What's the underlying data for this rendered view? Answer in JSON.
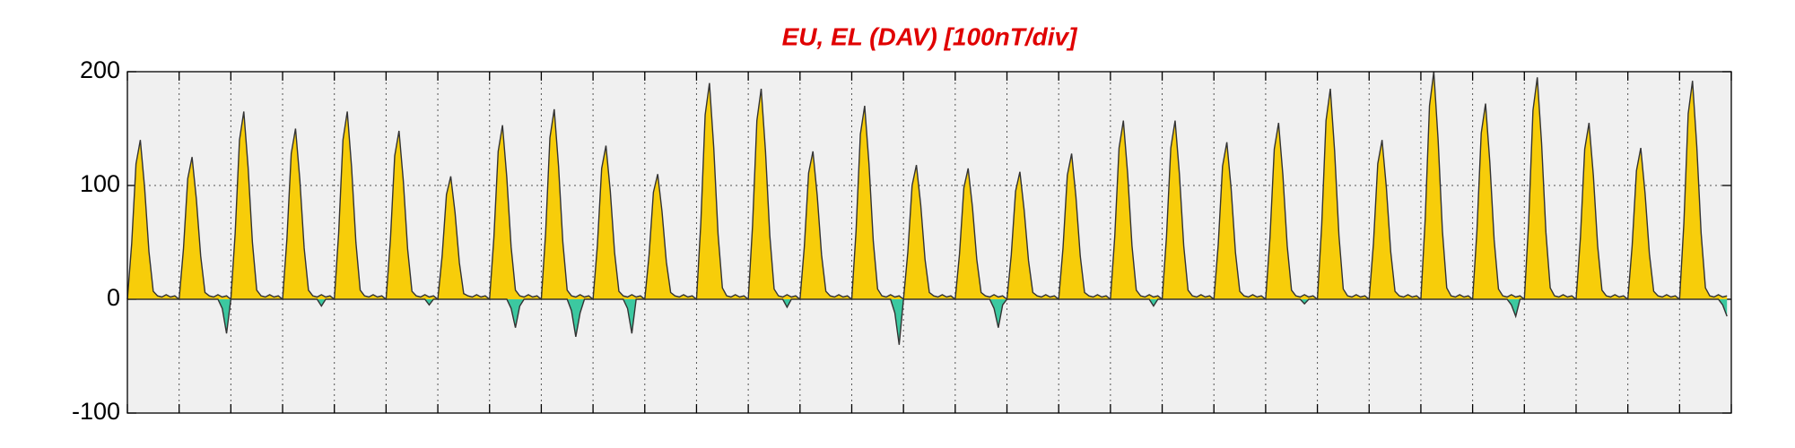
{
  "chart_data": {
    "type": "area",
    "title": "EU, EL (DAV)  [100nT/div]",
    "xlim": [
      0,
      744
    ],
    "xticks": [
      0,
      24,
      48,
      72,
      96,
      120,
      144,
      168,
      192,
      216,
      240,
      264,
      288,
      312,
      336,
      360,
      384,
      408,
      432,
      456,
      480,
      504,
      528,
      552,
      576,
      600,
      624,
      648,
      672,
      696,
      720,
      744
    ],
    "ylim": [
      -100,
      200
    ],
    "yticks": [
      -100,
      0,
      100,
      200
    ],
    "grid": true,
    "x": [
      0,
      2,
      4,
      6,
      8,
      10,
      12,
      14,
      16,
      18,
      20,
      22,
      24,
      26,
      28,
      30,
      32,
      34,
      36,
      38,
      40,
      42,
      44,
      46,
      48,
      50,
      52,
      54,
      56,
      58,
      60,
      62,
      64,
      66,
      68,
      70,
      72,
      74,
      76,
      78,
      80,
      82,
      84,
      86,
      88,
      90,
      92,
      94,
      96,
      98,
      100,
      102,
      104,
      106,
      108,
      110,
      112,
      114,
      116,
      118,
      120,
      122,
      124,
      126,
      128,
      130,
      132,
      134,
      136,
      138,
      140,
      142,
      144,
      146,
      148,
      150,
      152,
      154,
      156,
      158,
      160,
      162,
      164,
      166,
      168,
      170,
      172,
      174,
      176,
      178,
      180,
      182,
      184,
      186,
      188,
      190,
      192,
      194,
      196,
      198,
      200,
      202,
      204,
      206,
      208,
      210,
      212,
      214,
      216,
      218,
      220,
      222,
      224,
      226,
      228,
      230,
      232,
      234,
      236,
      238,
      240,
      242,
      244,
      246,
      248,
      250,
      252,
      254,
      256,
      258,
      260,
      262,
      264,
      266,
      268,
      270,
      272,
      274,
      276,
      278,
      280,
      282,
      284,
      286,
      288,
      290,
      292,
      294,
      296,
      298,
      300,
      302,
      304,
      306,
      308,
      310,
      312,
      314,
      316,
      318,
      320,
      322,
      324,
      326,
      328,
      330,
      332,
      334,
      336,
      338,
      340,
      342,
      344,
      346,
      348,
      350,
      352,
      354,
      356,
      358,
      360,
      362,
      364,
      366,
      368,
      370,
      372,
      374,
      376,
      378,
      380,
      382,
      384,
      386,
      388,
      390,
      392,
      394,
      396,
      398,
      400,
      402,
      404,
      406,
      408,
      410,
      412,
      414,
      416,
      418,
      420,
      422,
      424,
      426,
      428,
      430,
      432,
      434,
      436,
      438,
      440,
      442,
      444,
      446,
      448,
      450,
      452,
      454,
      456,
      458,
      460,
      462,
      464,
      466,
      468,
      470,
      472,
      474,
      476,
      478,
      480,
      482,
      484,
      486,
      488,
      490,
      492,
      494,
      496,
      498,
      500,
      502,
      504,
      506,
      508,
      510,
      512,
      514,
      516,
      518,
      520,
      522,
      524,
      526,
      528,
      530,
      532,
      534,
      536,
      538,
      540,
      542,
      544,
      546,
      548,
      550,
      552,
      554,
      556,
      558,
      560,
      562,
      564,
      566,
      568,
      570,
      572,
      574,
      576,
      578,
      580,
      582,
      584,
      586,
      588,
      590,
      592,
      594,
      596,
      598,
      600,
      602,
      604,
      606,
      608,
      610,
      612,
      614,
      616,
      618,
      620,
      622,
      624,
      626,
      628,
      630,
      632,
      634,
      636,
      638,
      640,
      642,
      644,
      646,
      648,
      650,
      652,
      654,
      656,
      658,
      660,
      662,
      664,
      666,
      668,
      670,
      672,
      674,
      676,
      678,
      680,
      682,
      684,
      686,
      688,
      690,
      692,
      694,
      696,
      698,
      700,
      702,
      704,
      706,
      708,
      710,
      712,
      714,
      716,
      718,
      720,
      722,
      724,
      726,
      728,
      730,
      732,
      734,
      736,
      738,
      740,
      742
    ],
    "series": [
      {
        "color": "#f7cd0a",
        "values": [
          0,
          49,
          119,
          140,
          98,
          42,
          7,
          3,
          2,
          4,
          2,
          3,
          0,
          44,
          106,
          125,
          88,
          38,
          6,
          3,
          2,
          4,
          2,
          3,
          0,
          58,
          140,
          165,
          116,
          50,
          8,
          3,
          2,
          4,
          2,
          3,
          0,
          53,
          128,
          150,
          105,
          45,
          8,
          3,
          2,
          4,
          2,
          3,
          0,
          58,
          140,
          165,
          116,
          50,
          8,
          3,
          2,
          4,
          2,
          3,
          0,
          52,
          126,
          148,
          104,
          44,
          7,
          3,
          2,
          4,
          2,
          3,
          0,
          38,
          92,
          108,
          76,
          32,
          5,
          3,
          2,
          4,
          2,
          3,
          0,
          54,
          130,
          153,
          107,
          46,
          8,
          3,
          2,
          4,
          2,
          3,
          0,
          58,
          142,
          167,
          117,
          50,
          8,
          3,
          2,
          4,
          2,
          3,
          0,
          47,
          115,
          135,
          95,
          41,
          7,
          3,
          2,
          4,
          2,
          3,
          0,
          39,
          94,
          110,
          77,
          33,
          6,
          3,
          2,
          4,
          2,
          3,
          0,
          67,
          162,
          190,
          133,
          57,
          10,
          3,
          2,
          4,
          2,
          3,
          0,
          65,
          157,
          185,
          130,
          56,
          9,
          3,
          2,
          4,
          2,
          3,
          0,
          46,
          111,
          130,
          91,
          39,
          7,
          3,
          2,
          4,
          2,
          3,
          0,
          60,
          145,
          170,
          119,
          51,
          9,
          3,
          2,
          4,
          2,
          3,
          0,
          41,
          100,
          118,
          83,
          35,
          6,
          3,
          2,
          4,
          2,
          3,
          0,
          40,
          98,
          115,
          81,
          35,
          6,
          3,
          2,
          4,
          2,
          3,
          0,
          39,
          95,
          112,
          78,
          34,
          6,
          3,
          2,
          4,
          2,
          3,
          0,
          45,
          109,
          128,
          90,
          38,
          6,
          3,
          2,
          4,
          2,
          3,
          0,
          55,
          133,
          157,
          110,
          47,
          8,
          3,
          2,
          4,
          2,
          3,
          0,
          55,
          133,
          157,
          110,
          47,
          8,
          3,
          2,
          4,
          2,
          3,
          0,
          48,
          117,
          138,
          97,
          41,
          7,
          3,
          2,
          4,
          2,
          3,
          0,
          54,
          132,
          155,
          109,
          47,
          8,
          3,
          2,
          4,
          2,
          3,
          0,
          65,
          157,
          185,
          130,
          56,
          9,
          3,
          2,
          4,
          2,
          3,
          0,
          49,
          119,
          140,
          98,
          42,
          7,
          3,
          2,
          4,
          2,
          3,
          0,
          70,
          170,
          200,
          140,
          60,
          10,
          3,
          2,
          4,
          2,
          3,
          0,
          60,
          146,
          172,
          120,
          52,
          9,
          3,
          2,
          4,
          2,
          3,
          0,
          68,
          166,
          195,
          137,
          59,
          10,
          3,
          2,
          4,
          2,
          3,
          0,
          54,
          132,
          155,
          109,
          47,
          8,
          3,
          2,
          4,
          2,
          3,
          0,
          47,
          113,
          133,
          93,
          40,
          7,
          3,
          2,
          4,
          2,
          3,
          0,
          67,
          163,
          192,
          134,
          58,
          10,
          3,
          2,
          4,
          2,
          3
        ]
      },
      {
        "color": "#3cc8a0",
        "values": [
          0,
          0,
          0,
          0,
          0,
          0,
          0,
          0,
          0,
          0,
          0,
          0,
          0,
          0,
          0,
          0,
          0,
          0,
          0,
          0,
          0,
          0,
          -8,
          -30,
          0,
          0,
          0,
          0,
          0,
          0,
          0,
          0,
          0,
          0,
          0,
          0,
          0,
          0,
          0,
          0,
          0,
          0,
          0,
          0,
          0,
          -6,
          0,
          0,
          0,
          0,
          0,
          0,
          0,
          0,
          0,
          0,
          0,
          0,
          0,
          0,
          0,
          0,
          0,
          0,
          0,
          0,
          0,
          0,
          0,
          0,
          -5,
          0,
          0,
          0,
          0,
          0,
          0,
          0,
          0,
          0,
          0,
          0,
          0,
          0,
          0,
          0,
          0,
          0,
          0,
          -8,
          -25,
          -6,
          0,
          0,
          0,
          0,
          0,
          0,
          0,
          0,
          0,
          0,
          0,
          -10,
          -33,
          -12,
          0,
          0,
          0,
          0,
          0,
          0,
          0,
          0,
          0,
          0,
          -8,
          -30,
          0,
          0,
          0,
          0,
          0,
          0,
          0,
          0,
          0,
          0,
          0,
          0,
          0,
          0,
          0,
          0,
          0,
          0,
          0,
          0,
          0,
          0,
          0,
          0,
          0,
          0,
          0,
          0,
          0,
          0,
          0,
          0,
          0,
          0,
          0,
          -7,
          0,
          0,
          0,
          0,
          0,
          0,
          0,
          0,
          0,
          0,
          0,
          0,
          0,
          0,
          0,
          0,
          0,
          0,
          0,
          0,
          0,
          0,
          0,
          0,
          -12,
          -40,
          0,
          0,
          0,
          0,
          0,
          0,
          0,
          0,
          0,
          0,
          0,
          0,
          0,
          0,
          0,
          0,
          0,
          0,
          0,
          0,
          0,
          -8,
          -25,
          -5,
          0,
          0,
          0,
          0,
          0,
          0,
          0,
          0,
          0,
          0,
          0,
          0,
          0,
          0,
          0,
          0,
          0,
          0,
          0,
          0,
          0,
          0,
          0,
          0,
          0,
          0,
          0,
          0,
          0,
          0,
          0,
          0,
          0,
          0,
          -6,
          0,
          0,
          0,
          0,
          0,
          0,
          0,
          0,
          0,
          0,
          0,
          0,
          0,
          0,
          0,
          0,
          0,
          0,
          0,
          0,
          0,
          0,
          0,
          0,
          0,
          0,
          0,
          0,
          0,
          0,
          0,
          0,
          0,
          0,
          -4,
          0,
          0,
          0,
          0,
          0,
          0,
          0,
          0,
          0,
          0,
          0,
          0,
          0,
          0,
          0,
          0,
          0,
          0,
          0,
          0,
          0,
          0,
          0,
          0,
          0,
          0,
          0,
          0,
          0,
          0,
          0,
          0,
          0,
          0,
          0,
          0,
          0,
          0,
          0,
          0,
          0,
          0,
          0,
          0,
          0,
          0,
          0,
          -5,
          -15,
          0,
          0,
          0,
          0,
          0,
          0,
          0,
          0,
          0,
          0,
          0,
          0,
          0,
          0,
          0,
          0,
          0,
          0,
          0,
          0,
          0,
          0,
          0,
          0,
          0,
          0,
          0,
          0,
          0,
          0,
          0,
          0,
          0,
          0,
          0,
          0,
          0,
          0,
          0,
          0,
          0,
          0,
          0,
          0,
          0,
          0,
          0,
          -5,
          -15
        ]
      }
    ]
  }
}
